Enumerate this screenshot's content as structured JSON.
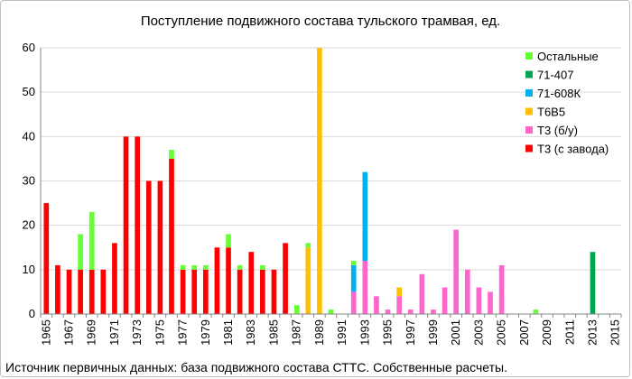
{
  "chart_data": {
    "type": "bar",
    "stacked": true,
    "title": "Поступление подвижного состава тульского трамвая, ед.",
    "source_note": "Источник первичных данных: база подвижного состава СТТС. Собственные расчеты.",
    "xlabel": "",
    "ylabel": "",
    "ylim": [
      0,
      60
    ],
    "yticks": [
      "0",
      "10",
      "20",
      "30",
      "40",
      "50",
      "60"
    ],
    "x": [
      1965,
      1966,
      1967,
      1968,
      1969,
      1970,
      1971,
      1972,
      1973,
      1974,
      1975,
      1976,
      1977,
      1978,
      1979,
      1980,
      1981,
      1982,
      1983,
      1984,
      1985,
      1986,
      1987,
      1988,
      1989,
      1990,
      1991,
      1992,
      1993,
      1994,
      1995,
      1996,
      1997,
      1998,
      1999,
      2000,
      2001,
      2002,
      2003,
      2004,
      2005,
      2006,
      2007,
      2008,
      2009,
      2010,
      2011,
      2012,
      2013,
      2014,
      2015
    ],
    "xtick_labels": [
      "1965",
      "1967",
      "1969",
      "1971",
      "1973",
      "1975",
      "1977",
      "1979",
      "1981",
      "1983",
      "1985",
      "1987",
      "1989",
      "1991",
      "1993",
      "1995",
      "1997",
      "1999",
      "2001",
      "2003",
      "2005",
      "2007",
      "2009",
      "2011",
      "2013",
      "2015"
    ],
    "legend_position": "top-right",
    "series": [
      {
        "name": "Т3 (с завода)",
        "color": "#ff0000",
        "values": [
          25,
          11,
          10,
          10,
          10,
          10,
          16,
          40,
          40,
          30,
          30,
          35,
          10,
          10,
          10,
          15,
          15,
          10,
          14,
          10,
          10,
          16,
          0,
          0,
          0,
          0,
          0,
          0,
          0,
          0,
          0,
          0,
          0,
          0,
          0,
          0,
          0,
          0,
          0,
          0,
          0,
          0,
          0,
          0,
          0,
          0,
          0,
          0,
          0,
          0,
          0
        ]
      },
      {
        "name": "Т3 (б/у)",
        "color": "#ff66cc",
        "values": [
          0,
          0,
          0,
          0,
          0,
          0,
          0,
          0,
          0,
          0,
          0,
          0,
          0,
          0,
          0,
          0,
          0,
          0,
          0,
          0,
          0,
          0,
          0,
          0,
          0,
          0,
          0,
          5,
          12,
          4,
          1,
          4,
          1,
          9,
          1,
          6,
          19,
          10,
          6,
          5,
          11,
          0,
          0,
          0,
          0,
          0,
          0,
          0,
          0,
          0,
          0
        ]
      },
      {
        "name": "Т6В5",
        "color": "#ffc000",
        "values": [
          0,
          0,
          0,
          0,
          0,
          0,
          0,
          0,
          0,
          0,
          0,
          0,
          0,
          0,
          0,
          0,
          0,
          0,
          0,
          0,
          0,
          0,
          0,
          15,
          60,
          0,
          0,
          0,
          0,
          0,
          0,
          2,
          0,
          0,
          0,
          0,
          0,
          0,
          0,
          0,
          0,
          0,
          0,
          0,
          0,
          0,
          0,
          0,
          0,
          0,
          0
        ]
      },
      {
        "name": "71-608К",
        "color": "#00b0f0",
        "values": [
          0,
          0,
          0,
          0,
          0,
          0,
          0,
          0,
          0,
          0,
          0,
          0,
          0,
          0,
          0,
          0,
          0,
          0,
          0,
          0,
          0,
          0,
          0,
          0,
          0,
          0,
          0,
          6,
          20,
          0,
          0,
          0,
          0,
          0,
          0,
          0,
          0,
          0,
          0,
          0,
          0,
          0,
          0,
          0,
          0,
          0,
          0,
          0,
          0,
          0,
          0
        ]
      },
      {
        "name": "71-407",
        "color": "#00a550",
        "values": [
          0,
          0,
          0,
          0,
          0,
          0,
          0,
          0,
          0,
          0,
          0,
          0,
          0,
          0,
          0,
          0,
          0,
          0,
          0,
          0,
          0,
          0,
          0,
          0,
          0,
          0,
          0,
          0,
          0,
          0,
          0,
          0,
          0,
          0,
          0,
          0,
          0,
          0,
          0,
          0,
          0,
          0,
          0,
          0,
          0,
          0,
          0,
          0,
          14,
          0,
          0
        ]
      },
      {
        "name": "Остальные",
        "color": "#66ff33",
        "values": [
          0,
          0,
          0,
          8,
          13,
          0,
          0,
          0,
          0,
          0,
          0,
          2,
          1,
          1,
          1,
          0,
          3,
          1,
          0,
          1,
          0,
          0,
          2,
          1,
          0,
          1,
          0,
          1,
          0,
          0,
          0,
          0,
          0,
          0,
          0,
          0,
          0,
          0,
          0,
          0,
          0,
          0,
          0,
          1,
          0,
          0,
          0,
          0,
          0,
          0,
          0
        ]
      }
    ]
  }
}
